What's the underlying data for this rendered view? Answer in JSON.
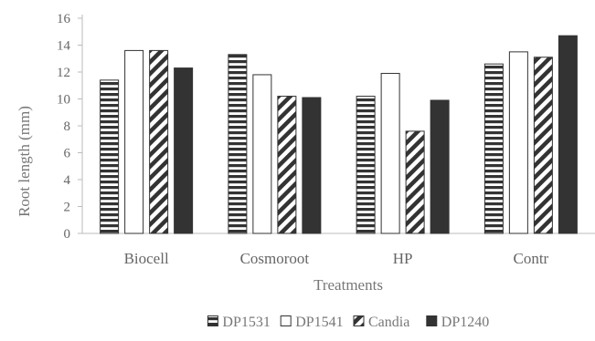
{
  "chart_data": {
    "type": "bar",
    "title": "",
    "xlabel": "Treatments",
    "ylabel": "Root length (mm)",
    "ylim": [
      0,
      16
    ],
    "yticks": [
      0,
      2,
      4,
      6,
      8,
      10,
      12,
      14,
      16
    ],
    "categories": [
      "Biocell",
      "Cosmoroot",
      "HP",
      "Contr"
    ],
    "series": [
      {
        "name": "DP1531",
        "pattern": "horizontal-stripes",
        "values": [
          11.4,
          13.3,
          10.2,
          12.6
        ]
      },
      {
        "name": "DP1541",
        "pattern": "white",
        "values": [
          13.6,
          11.8,
          11.9,
          13.5
        ]
      },
      {
        "name": "Candia",
        "pattern": "diagonal-stripes",
        "values": [
          13.6,
          10.2,
          7.6,
          13.1
        ]
      },
      {
        "name": "DP1240",
        "pattern": "solid",
        "values": [
          12.3,
          10.1,
          9.9,
          14.7
        ]
      }
    ],
    "grid": false,
    "legend": "bottom",
    "colors": {
      "bar": "#333333",
      "stroke": "#333333",
      "axis": "#bbbbbb"
    }
  }
}
